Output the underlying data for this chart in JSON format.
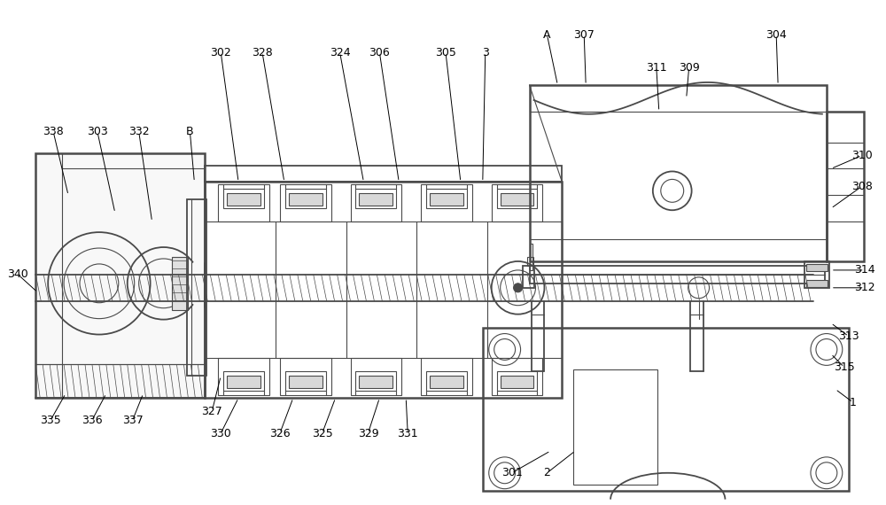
{
  "bg_color": "#ffffff",
  "lc": "#4a4a4a",
  "figsize": [
    10.0,
    5.7
  ],
  "dpi": 100,
  "label_fs": 9,
  "label_color": "#000000"
}
